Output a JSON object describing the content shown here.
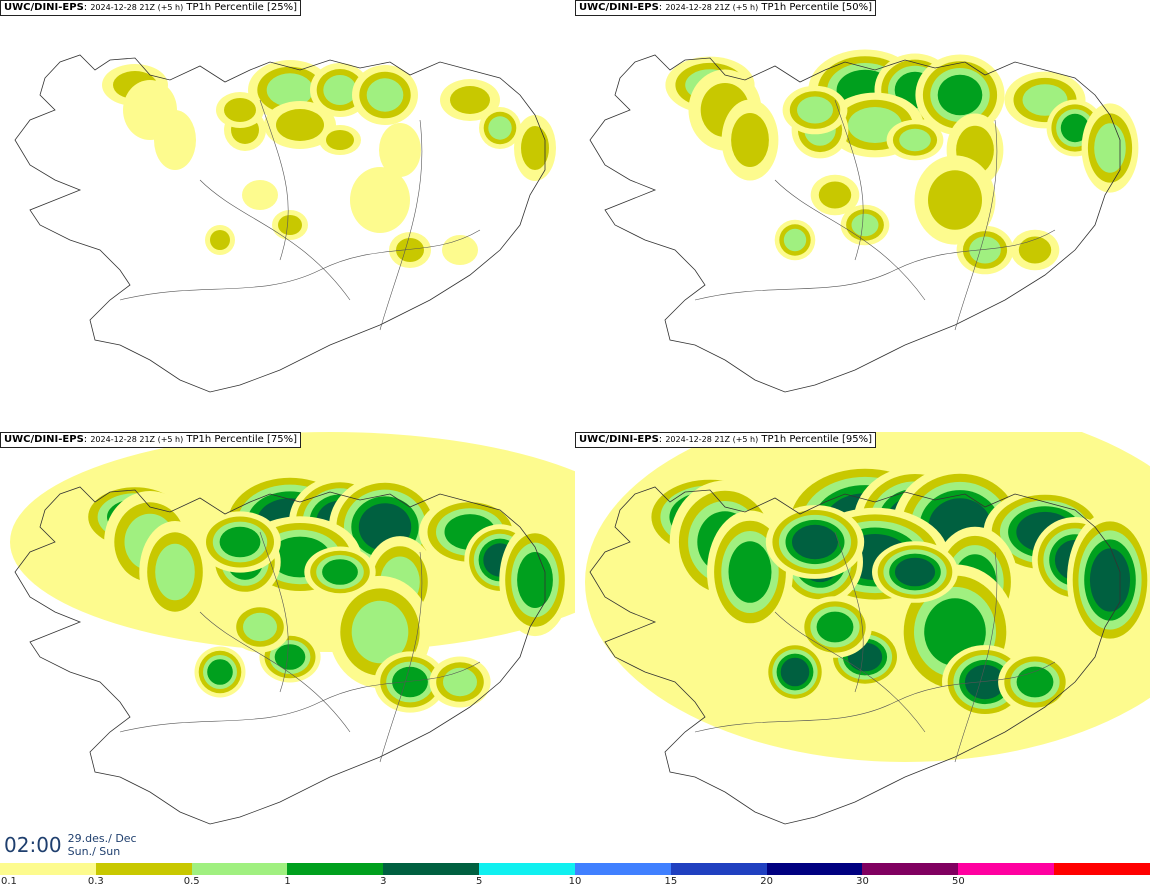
{
  "panels": [
    {
      "model": "UWC/DINI-EPS",
      "run": "2024-12-28 21Z (+5 h)",
      "title": "TP1h Percentile [25%]",
      "level": 0
    },
    {
      "model": "UWC/DINI-EPS",
      "run": "2024-12-28 21Z (+5 h)",
      "title": "TP1h Percentile [50%]",
      "level": 1
    },
    {
      "model": "UWC/DINI-EPS",
      "run": "2024-12-28 21Z (+5 h)",
      "title": "TP1h Percentile [75%]",
      "level": 2
    },
    {
      "model": "UWC/DINI-EPS",
      "run": "2024-12-28 21Z (+5 h)",
      "title": "TP1h Percentile [95%]",
      "level": 3
    }
  ],
  "time": {
    "value": "02:00",
    "date": "29.des./ Dec",
    "day": "Sun./ Sun"
  },
  "legend": {
    "colors": [
      "#fdfb8e",
      "#c8c800",
      "#a0f080",
      "#00a01e",
      "#006040",
      "#10f0f0",
      "#4080ff",
      "#2040c0",
      "#000080",
      "#800060",
      "#ff00a0",
      "#ff0000"
    ],
    "labels": [
      "0.1",
      "0.3",
      "0.5",
      "1",
      "3",
      "5",
      "10",
      "15",
      "20",
      "30",
      "50"
    ]
  }
}
